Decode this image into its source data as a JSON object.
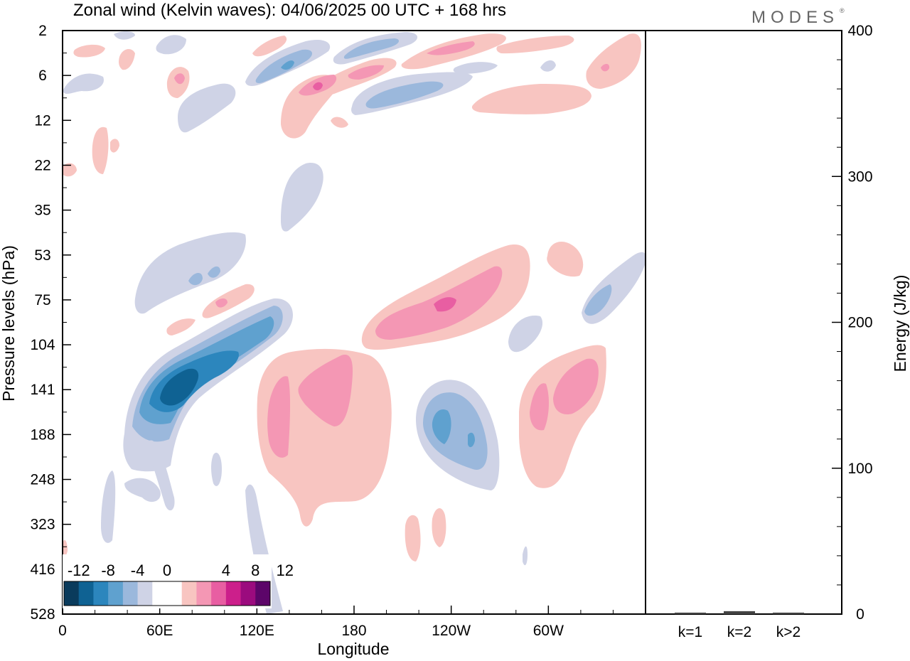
{
  "title": "Zonal wind (Kelvin waves):  04/06/2025  00 UTC  + 168 hrs",
  "logo": "MODES",
  "logo_mark": "®",
  "colors": {
    "negative": [
      "#0a3b5c",
      "#0f6293",
      "#2c86bd",
      "#5fa1cf",
      "#9bb8dc",
      "#cfd3e6"
    ],
    "zero": "#ffffff",
    "positive": [
      "#f8c5c1",
      "#f497b4",
      "#e85ea2",
      "#cc1f8b",
      "#9b0b7e",
      "#5c0569"
    ]
  },
  "chart_data": [
    {
      "type": "heatmap",
      "title": "Zonal wind (Kelvin waves):  04/06/2025  00 UTC  + 168 hrs",
      "xlabel": "Longitude",
      "ylabel": "Pressure levels (hPa)",
      "x_ticks": [
        "0",
        "60E",
        "120E",
        "180",
        "120W",
        "60W"
      ],
      "x_tick_degrees": [
        0,
        60,
        120,
        180,
        240,
        300
      ],
      "xlim": [
        0,
        360
      ],
      "y_ticks": [
        "2",
        "6",
        "12",
        "22",
        "35",
        "53",
        "75",
        "104",
        "141",
        "188",
        "248",
        "323",
        "416",
        "528"
      ],
      "y_scale": "log (pressure levels, top = 2 hPa)",
      "colorbar": {
        "labels": [
          "-12",
          "-8",
          "-4",
          "0",
          "4",
          "8",
          "12"
        ],
        "levels": [
          -14,
          -12,
          -10,
          -8,
          -6,
          -4,
          -2,
          2,
          4,
          6,
          8,
          10,
          12,
          14
        ]
      },
      "features": [
        {
          "sign": "negative",
          "peak": -12,
          "lon": 65,
          "level": 141
        },
        {
          "sign": "negative",
          "peak": -8,
          "lon": 235,
          "level": 188
        },
        {
          "sign": "negative",
          "peak": -6,
          "lon": 332,
          "level": 75
        },
        {
          "sign": "negative",
          "peak": -6,
          "lon": 138,
          "level": 6
        },
        {
          "sign": "negative",
          "peak": -6,
          "lon": 210,
          "level": 9
        },
        {
          "sign": "positive",
          "peak": 8,
          "lon": 237,
          "level": 75
        },
        {
          "sign": "positive",
          "peak": 6,
          "lon": 160,
          "level": 141
        },
        {
          "sign": "positive",
          "peak": 6,
          "lon": 310,
          "level": 141
        },
        {
          "sign": "positive",
          "peak": 8,
          "lon": 158,
          "level": 8
        },
        {
          "sign": "positive",
          "peak": 6,
          "lon": 250,
          "level": 3
        }
      ]
    },
    {
      "type": "bar",
      "ylabel": "Energy (J/kg)",
      "ylim": [
        0,
        400
      ],
      "y_ticks": [
        "0",
        "100",
        "200",
        "300",
        "400"
      ],
      "categories": [
        "k=1",
        "k=2",
        "k>2"
      ],
      "values": [
        1,
        2,
        1
      ]
    }
  ]
}
